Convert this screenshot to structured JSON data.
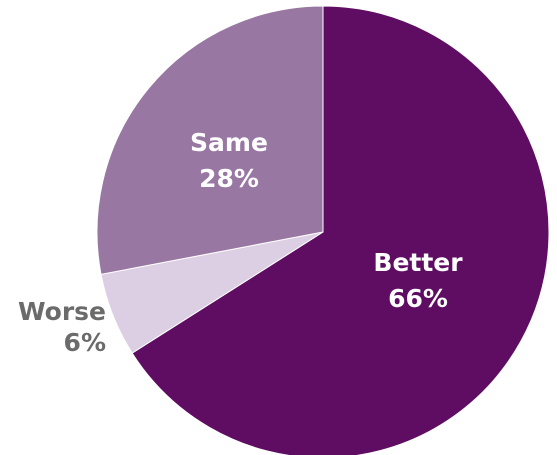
{
  "chart_data": {
    "type": "pie",
    "title": "",
    "slices": [
      {
        "label": "Better",
        "value": 66,
        "value_label": "66%",
        "color": "#5e0d63"
      },
      {
        "label": "Worse",
        "value": 6,
        "value_label": "6%",
        "color": "#dccfe3"
      },
      {
        "label": "Same",
        "value": 28,
        "value_label": "28%",
        "color": "#9877a2"
      }
    ],
    "start": "12 o'clock",
    "direction": "clockwise",
    "legend": "none"
  }
}
